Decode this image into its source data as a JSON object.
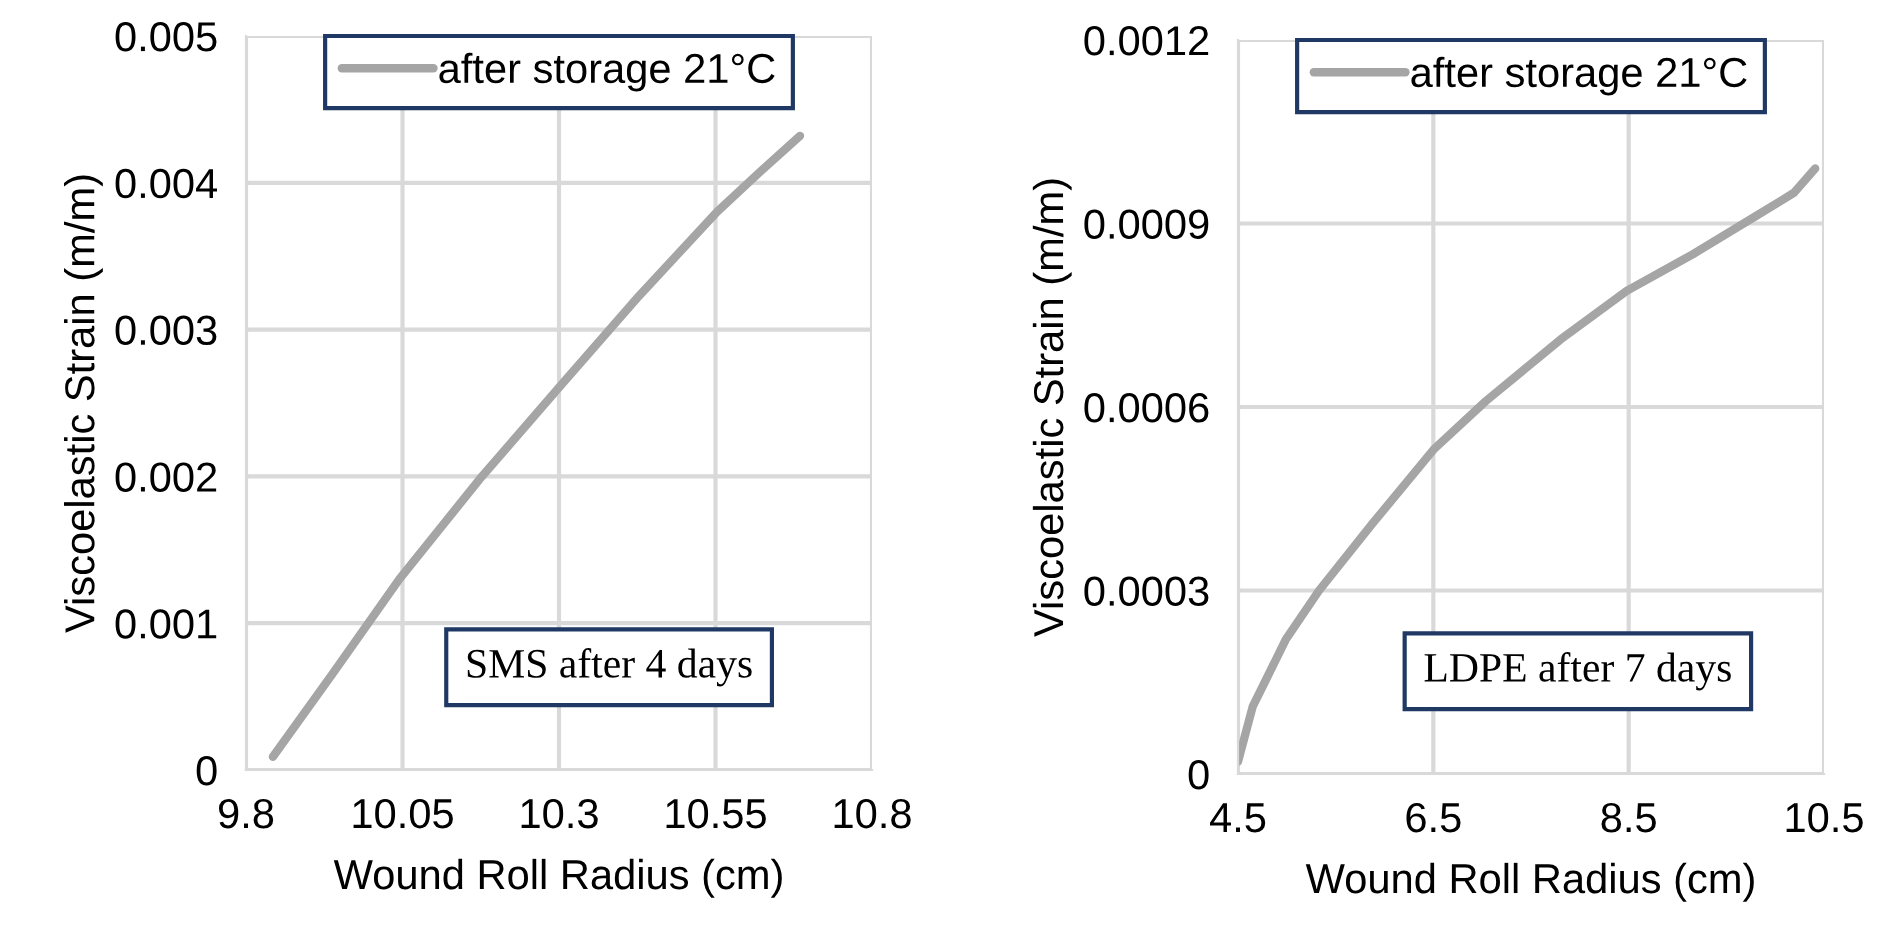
{
  "chart_data": [
    {
      "type": "line",
      "xlabel": "Wound Roll Radius (cm)",
      "ylabel": "Viscoelastic Strain (m/m)",
      "xlim": [
        9.8,
        10.8
      ],
      "xticks": [
        9.8,
        10.05,
        10.3,
        10.55,
        10.8
      ],
      "ylim": [
        0,
        0.005
      ],
      "yticks": [
        0,
        0.001,
        0.002,
        0.003,
        0.004,
        0.005
      ],
      "grid": true,
      "legend": "top",
      "annotations": [
        "SMS after 4 days"
      ],
      "series": [
        {
          "name": "after storage 21°C",
          "color": "#a5a5a5",
          "x": [
            9.843,
            9.939,
            10.045,
            10.173,
            10.301,
            10.428,
            10.552,
            10.62,
            10.685
          ],
          "values": [
            9e-05,
            0.00066,
            0.0013,
            0.00198,
            0.00261,
            0.00323,
            0.0038,
            0.00407,
            0.00432
          ]
        }
      ]
    },
    {
      "type": "line",
      "xlabel": "Wound Roll Radius (cm)",
      "ylabel": "Viscoelastic Strain (m/m)",
      "xlim": [
        4.5,
        10.5
      ],
      "xticks": [
        4.5,
        6.5,
        8.5,
        10.5
      ],
      "ylim": [
        0,
        0.0012
      ],
      "yticks": [
        0,
        0.0003,
        0.0006,
        0.0009,
        0.0012
      ],
      "grid": true,
      "legend": "top",
      "annotations": [
        "LDPE after 7 days"
      ],
      "series": [
        {
          "name": "after storage 21°C",
          "color": "#a5a5a5",
          "x": [
            4.5,
            4.65,
            4.99,
            5.33,
            5.88,
            6.5,
            7.04,
            7.8,
            8.48,
            9.16,
            9.78,
            10.19,
            10.41
          ],
          "values": [
            2e-05,
            0.00011,
            0.00022,
            0.0003,
            0.00041,
            0.00053,
            0.00061,
            0.00071,
            0.00079,
            0.00085,
            0.00091,
            0.00095,
            0.00099
          ]
        }
      ]
    }
  ]
}
